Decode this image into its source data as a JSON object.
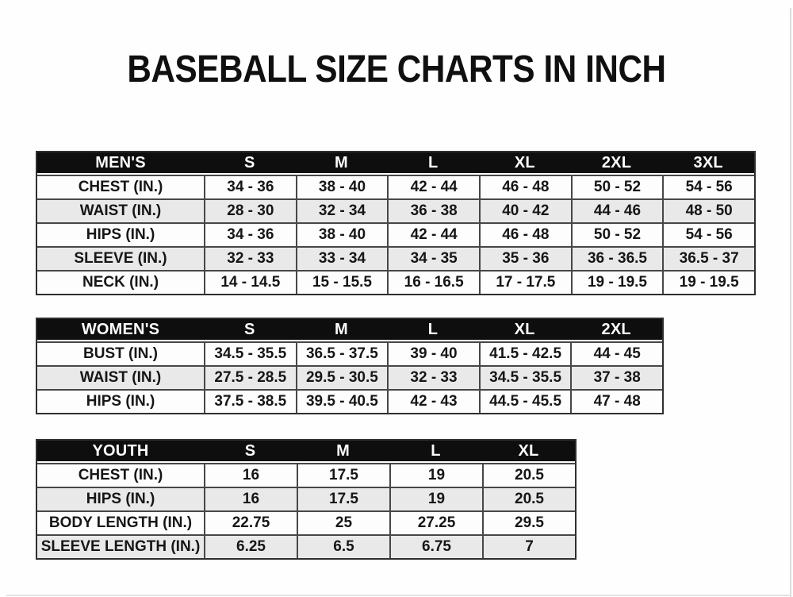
{
  "title": "BASEBALL SIZE CHARTS IN INCH",
  "colors": {
    "header_background": "#0e0e0e",
    "header_text": "#fcfcfc",
    "row_alternate": "#e9e9e9",
    "row_base": "#fdfdfd",
    "grid_line": "#474747",
    "text": "#161616"
  },
  "chart_data": [
    {
      "type": "table",
      "group_label": "MEN'S",
      "size_headers": [
        "S",
        "M",
        "L",
        "XL",
        "2XL",
        "3XL"
      ],
      "rows": [
        {
          "label": "CHEST (IN.)",
          "values": [
            "34 - 36",
            "38 - 40",
            "42 - 44",
            "46 - 48",
            "50 - 52",
            "54 - 56"
          ]
        },
        {
          "label": "WAIST (IN.)",
          "values": [
            "28 - 30",
            "32 - 34",
            "36 - 38",
            "40 - 42",
            "44 - 46",
            "48 - 50"
          ]
        },
        {
          "label": "HIPS (IN.)",
          "values": [
            "34 - 36",
            "38 - 40",
            "42 - 44",
            "46 - 48",
            "50 - 52",
            "54 - 56"
          ]
        },
        {
          "label": "SLEEVE (IN.)",
          "values": [
            "32 - 33",
            "33 - 34",
            "34 - 35",
            "35 - 36",
            "36 - 36.5",
            "36.5 - 37"
          ]
        },
        {
          "label": "NECK (IN.)",
          "values": [
            "14 - 14.5",
            "15 - 15.5",
            "16 - 16.5",
            "17 - 17.5",
            "19 - 19.5",
            "19 - 19.5"
          ]
        }
      ]
    },
    {
      "type": "table",
      "group_label": "WOMEN'S",
      "size_headers": [
        "S",
        "M",
        "L",
        "XL",
        "2XL"
      ],
      "rows": [
        {
          "label": "BUST (IN.)",
          "values": [
            "34.5 - 35.5",
            "36.5 - 37.5",
            "39 - 40",
            "41.5 - 42.5",
            "44 - 45"
          ]
        },
        {
          "label": "WAIST (IN.)",
          "values": [
            "27.5 - 28.5",
            "29.5 - 30.5",
            "32 - 33",
            "34.5 - 35.5",
            "37 - 38"
          ]
        },
        {
          "label": "HIPS (IN.)",
          "values": [
            "37.5 - 38.5",
            "39.5 - 40.5",
            "42 - 43",
            "44.5 - 45.5",
            "47 - 48"
          ]
        }
      ]
    },
    {
      "type": "table",
      "group_label": "YOUTH",
      "size_headers": [
        "S",
        "M",
        "L",
        "XL"
      ],
      "rows": [
        {
          "label": "CHEST (IN.)",
          "values": [
            "16",
            "17.5",
            "19",
            "20.5"
          ]
        },
        {
          "label": "HIPS (IN.)",
          "values": [
            "16",
            "17.5",
            "19",
            "20.5"
          ]
        },
        {
          "label": "BODY LENGTH (IN.)",
          "values": [
            "22.75",
            "25",
            "27.25",
            "29.5"
          ]
        },
        {
          "label": "SLEEVE LENGTH (IN.)",
          "values": [
            "6.25",
            "6.5",
            "6.75",
            "7"
          ]
        }
      ]
    }
  ]
}
